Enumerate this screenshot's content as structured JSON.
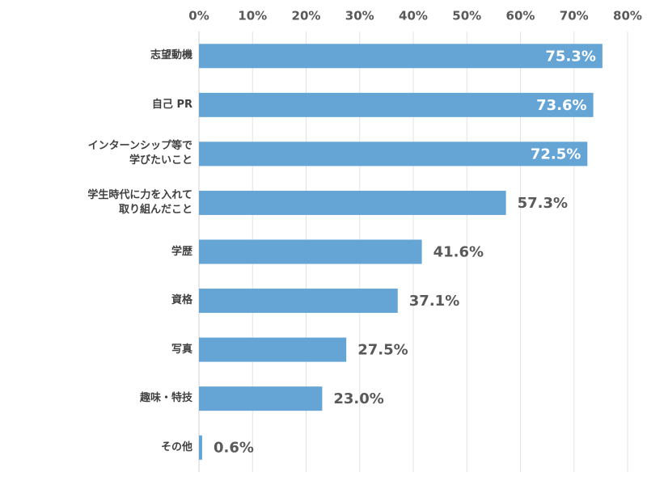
{
  "chart_data": {
    "type": "bar",
    "orientation": "horizontal",
    "categories": [
      "志望動機",
      "自己 PR",
      "インターンシップ等で\n学びたいこと",
      "学生時代に力を入れて\n取り組んだこと",
      "学歴",
      "資格",
      "写真",
      "趣味・特技",
      "その他"
    ],
    "values": [
      75.3,
      73.6,
      72.5,
      57.3,
      41.6,
      37.1,
      27.5,
      23.0,
      0.6
    ],
    "value_labels": [
      "75.3%",
      "73.6%",
      "72.5%",
      "57.3%",
      "41.6%",
      "37.1%",
      "27.5%",
      "23.0%",
      "0.6%"
    ],
    "color": "#65a5d6",
    "xlim": [
      0,
      80
    ],
    "xticks": [
      {
        "value": 0,
        "label": "0%"
      },
      {
        "value": 10,
        "label": "10%"
      },
      {
        "value": 20,
        "label": "20%"
      },
      {
        "value": 30,
        "label": "30%"
      },
      {
        "value": 40,
        "label": "40%"
      },
      {
        "value": 50,
        "label": "50%"
      },
      {
        "value": 60,
        "label": "60%"
      },
      {
        "value": 70,
        "label": "70%"
      },
      {
        "value": 80,
        "label": "80%"
      }
    ],
    "grid": true
  }
}
